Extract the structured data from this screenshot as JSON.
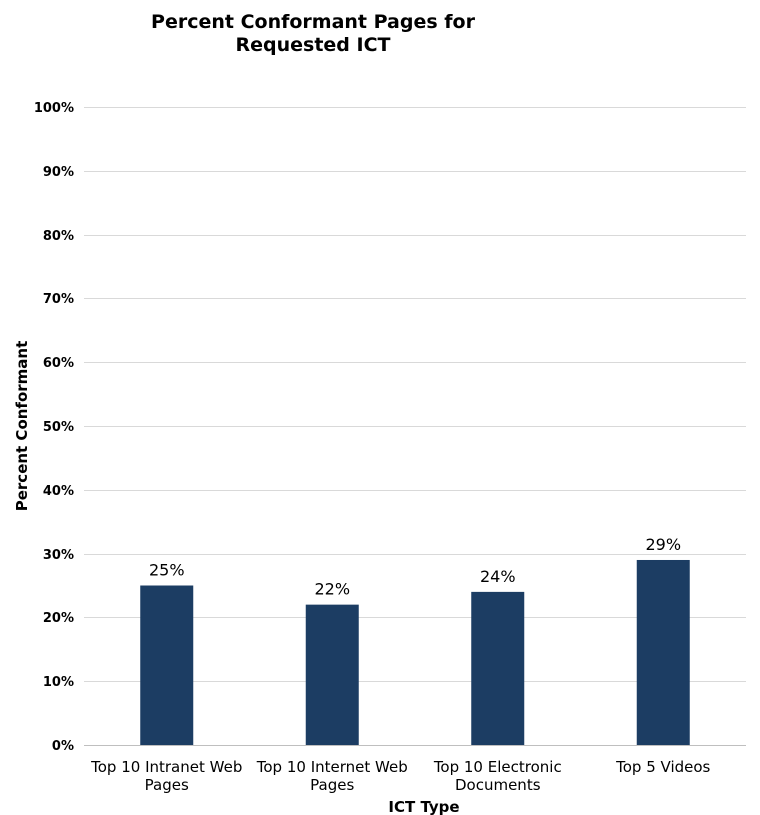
{
  "chart_data": {
    "type": "bar",
    "title": [
      "Percent Conformant Pages for",
      "Requested ICT"
    ],
    "xlabel": "ICT Type",
    "ylabel": "Percent Conformant",
    "categories": [
      [
        "Top 10 Intranet Web",
        "Pages"
      ],
      [
        "Top 10 Internet Web",
        "Pages"
      ],
      [
        "Top 10 Electronic",
        "Documents"
      ],
      [
        "Top 5 Videos"
      ]
    ],
    "values": [
      25,
      22,
      24,
      29
    ],
    "data_labels": [
      "25%",
      "22%",
      "24%",
      "29%"
    ],
    "ylim": [
      0,
      100
    ],
    "yticks": [
      0,
      10,
      20,
      30,
      40,
      50,
      60,
      70,
      80,
      90,
      100
    ],
    "ytick_labels": [
      "0%",
      "10%",
      "20%",
      "30%",
      "40%",
      "50%",
      "60%",
      "70%",
      "80%",
      "90%",
      "100%"
    ],
    "grid": true,
    "legend": "none",
    "bar_color": "#1c3d63"
  }
}
